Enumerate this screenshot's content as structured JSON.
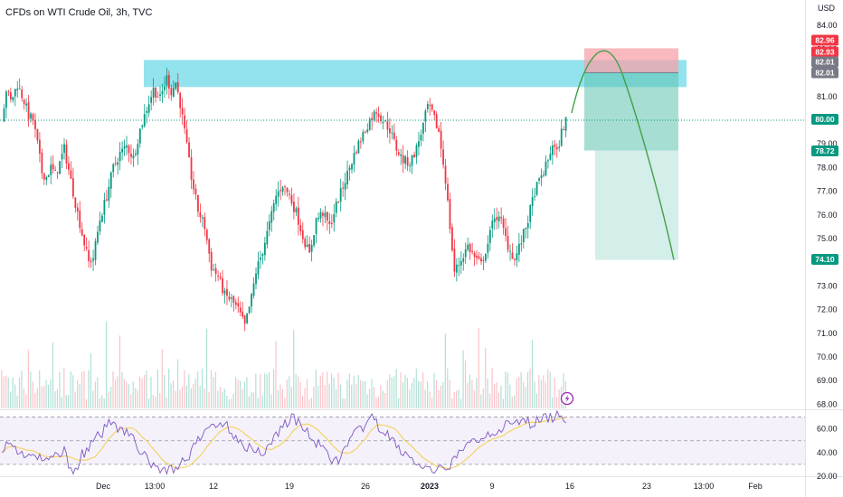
{
  "header": {
    "title": "CFDs on WTI Crude Oil, 3h, TVC"
  },
  "price_axis": {
    "currency": "USD",
    "ticks": [
      "84.00",
      "83.00",
      "82.00",
      "81.00",
      "80.00",
      "79.00",
      "78.00",
      "77.00",
      "76.00",
      "75.00",
      "74.00",
      "73.00",
      "72.00",
      "71.00",
      "70.00",
      "69.00",
      "68.00"
    ]
  },
  "rsi_axis": {
    "ticks": [
      "60.00",
      "40.00",
      "20.00"
    ]
  },
  "time_axis": {
    "labels": [
      {
        "text": "Dec",
        "bold": false
      },
      {
        "text": "13:00",
        "bold": false
      },
      {
        "text": "12",
        "bold": false
      },
      {
        "text": "19",
        "bold": false
      },
      {
        "text": "26",
        "bold": false
      },
      {
        "text": "2023",
        "bold": true
      },
      {
        "text": "9",
        "bold": false
      },
      {
        "text": "16",
        "bold": false
      },
      {
        "text": "23",
        "bold": false
      },
      {
        "text": "13:00",
        "bold": false
      },
      {
        "text": "Feb",
        "bold": false
      }
    ]
  },
  "badges": [
    {
      "text": "82.96",
      "color": "#f23645"
    },
    {
      "text": "82.93",
      "color": "#f23645"
    },
    {
      "text": "82.01",
      "color": "#787b86"
    },
    {
      "text": "82.01",
      "color": "#787b86"
    },
    {
      "text": "80.00",
      "color": "#089981"
    },
    {
      "text": "78.72",
      "color": "#089981"
    },
    {
      "text": "74.10",
      "color": "#089981"
    }
  ],
  "colors": {
    "up": "#089981",
    "down": "#f23645",
    "zone": "#7fdeea",
    "stop": "#f7a1aa",
    "target": "#9fd9cf",
    "projection": "#43a047",
    "rsi_line": "#7e57c2",
    "rsi_ma": "#f5d15b"
  },
  "chart_data": {
    "type": "candlestick",
    "title": "CFDs on WTI Crude Oil, 3h, TVC",
    "ylim": [
      68,
      84.6
    ],
    "resistance_zone": {
      "low": 82.01,
      "high": 82.35
    },
    "position": {
      "entry": 82.01,
      "stop": 82.96,
      "stop_alt": 82.93,
      "target": 74.1,
      "current_marker": 78.72
    },
    "last_price": 80.0,
    "path": [
      [
        0,
        80.0
      ],
      [
        2,
        81.3
      ],
      [
        4,
        80.8
      ],
      [
        7,
        81.5
      ],
      [
        10,
        80.8
      ],
      [
        12,
        80.2
      ],
      [
        14,
        80.0
      ],
      [
        16,
        79.0
      ],
      [
        18,
        77.8
      ],
      [
        20,
        77.6
      ],
      [
        22,
        78.0
      ],
      [
        24,
        77.7
      ],
      [
        26,
        78.2
      ],
      [
        28,
        78.8
      ],
      [
        30,
        77.9
      ],
      [
        33,
        76.5
      ],
      [
        36,
        75.2
      ],
      [
        39,
        74.0
      ],
      [
        41,
        74.2
      ],
      [
        44,
        75.8
      ],
      [
        47,
        76.8
      ],
      [
        50,
        78.0
      ],
      [
        53,
        78.6
      ],
      [
        56,
        78.9
      ],
      [
        59,
        78.4
      ],
      [
        62,
        79.6
      ],
      [
        65,
        80.5
      ],
      [
        68,
        81.3
      ],
      [
        71,
        80.9
      ],
      [
        74,
        81.8
      ],
      [
        76,
        81.2
      ],
      [
        78,
        81.6
      ],
      [
        80,
        80.7
      ],
      [
        82,
        79.5
      ],
      [
        85,
        77.6
      ],
      [
        88,
        76.2
      ],
      [
        91,
        75.5
      ],
      [
        94,
        73.8
      ],
      [
        97,
        73.4
      ],
      [
        100,
        72.6
      ],
      [
        103,
        72.4
      ],
      [
        106,
        72.0
      ],
      [
        109,
        71.3
      ],
      [
        112,
        72.5
      ],
      [
        114,
        73.6
      ],
      [
        117,
        74.5
      ],
      [
        120,
        75.6
      ],
      [
        123,
        76.8
      ],
      [
        126,
        77.3
      ],
      [
        129,
        76.8
      ],
      [
        132,
        76.1
      ],
      [
        135,
        75.1
      ],
      [
        138,
        74.3
      ],
      [
        141,
        75.8
      ],
      [
        144,
        76.1
      ],
      [
        147,
        75.5
      ],
      [
        150,
        76.4
      ],
      [
        153,
        77.2
      ],
      [
        156,
        78.0
      ],
      [
        159,
        78.8
      ],
      [
        162,
        79.4
      ],
      [
        165,
        80.0
      ],
      [
        168,
        80.4
      ],
      [
        171,
        80.0
      ],
      [
        174,
        79.6
      ],
      [
        177,
        78.8
      ],
      [
        180,
        78.3
      ],
      [
        183,
        78.2
      ],
      [
        186,
        78.8
      ],
      [
        189,
        79.8
      ],
      [
        191,
        80.6
      ],
      [
        193,
        80.3
      ],
      [
        196,
        79.5
      ],
      [
        199,
        77.5
      ],
      [
        201,
        75.5
      ],
      [
        203,
        73.6
      ],
      [
        206,
        74.1
      ],
      [
        209,
        74.7
      ],
      [
        212,
        74.2
      ],
      [
        215,
        73.9
      ],
      [
        218,
        74.8
      ],
      [
        221,
        76.0
      ],
      [
        224,
        75.7
      ],
      [
        227,
        74.7
      ],
      [
        230,
        74.1
      ],
      [
        233,
        74.9
      ],
      [
        236,
        75.8
      ],
      [
        239,
        77.0
      ],
      [
        242,
        77.6
      ],
      [
        245,
        78.3
      ],
      [
        247,
        79.0
      ],
      [
        249,
        78.6
      ],
      [
        251,
        79.5
      ],
      [
        253,
        80.0
      ]
    ],
    "projection": [
      [
        0,
        80.3
      ],
      [
        0.25,
        81.9
      ],
      [
        0.45,
        82.2
      ],
      [
        0.7,
        80.7
      ],
      [
        1,
        74.1
      ]
    ],
    "rsi": {
      "ylim": [
        20,
        75
      ],
      "upper_band": 70,
      "lower_band": 30,
      "mid_band": 50,
      "path": [
        [
          0,
          45
        ],
        [
          4,
          47
        ],
        [
          8,
          40
        ],
        [
          12,
          38
        ],
        [
          16,
          35
        ],
        [
          20,
          32
        ],
        [
          24,
          38
        ],
        [
          28,
          42
        ],
        [
          30,
          30
        ],
        [
          33,
          25
        ],
        [
          36,
          38
        ],
        [
          40,
          46
        ],
        [
          44,
          55
        ],
        [
          48,
          64
        ],
        [
          50,
          70
        ],
        [
          52,
          62
        ],
        [
          56,
          58
        ],
        [
          60,
          48
        ],
        [
          63,
          40
        ],
        [
          66,
          30
        ],
        [
          70,
          28
        ],
        [
          74,
          24
        ],
        [
          78,
          28
        ],
        [
          82,
          33
        ],
        [
          86,
          43
        ],
        [
          90,
          55
        ],
        [
          94,
          63
        ],
        [
          98,
          66
        ],
        [
          102,
          60
        ],
        [
          106,
          52
        ],
        [
          110,
          45
        ],
        [
          114,
          40
        ],
        [
          118,
          42
        ],
        [
          122,
          52
        ],
        [
          126,
          63
        ],
        [
          130,
          70
        ],
        [
          134,
          63
        ],
        [
          138,
          55
        ],
        [
          142,
          46
        ],
        [
          146,
          38
        ],
        [
          150,
          33
        ],
        [
          154,
          42
        ],
        [
          158,
          54
        ],
        [
          162,
          62
        ],
        [
          166,
          68
        ],
        [
          170,
          60
        ],
        [
          174,
          52
        ],
        [
          178,
          44
        ],
        [
          182,
          37
        ],
        [
          186,
          30
        ],
        [
          190,
          26
        ],
        [
          194,
          22
        ],
        [
          198,
          26
        ],
        [
          202,
          32
        ],
        [
          206,
          40
        ],
        [
          210,
          48
        ],
        [
          214,
          52
        ],
        [
          218,
          56
        ],
        [
          222,
          60
        ],
        [
          226,
          62
        ],
        [
          230,
          64
        ],
        [
          234,
          66
        ],
        [
          238,
          65
        ],
        [
          242,
          68
        ],
        [
          246,
          70
        ],
        [
          250,
          72
        ],
        [
          253,
          69
        ]
      ]
    }
  }
}
